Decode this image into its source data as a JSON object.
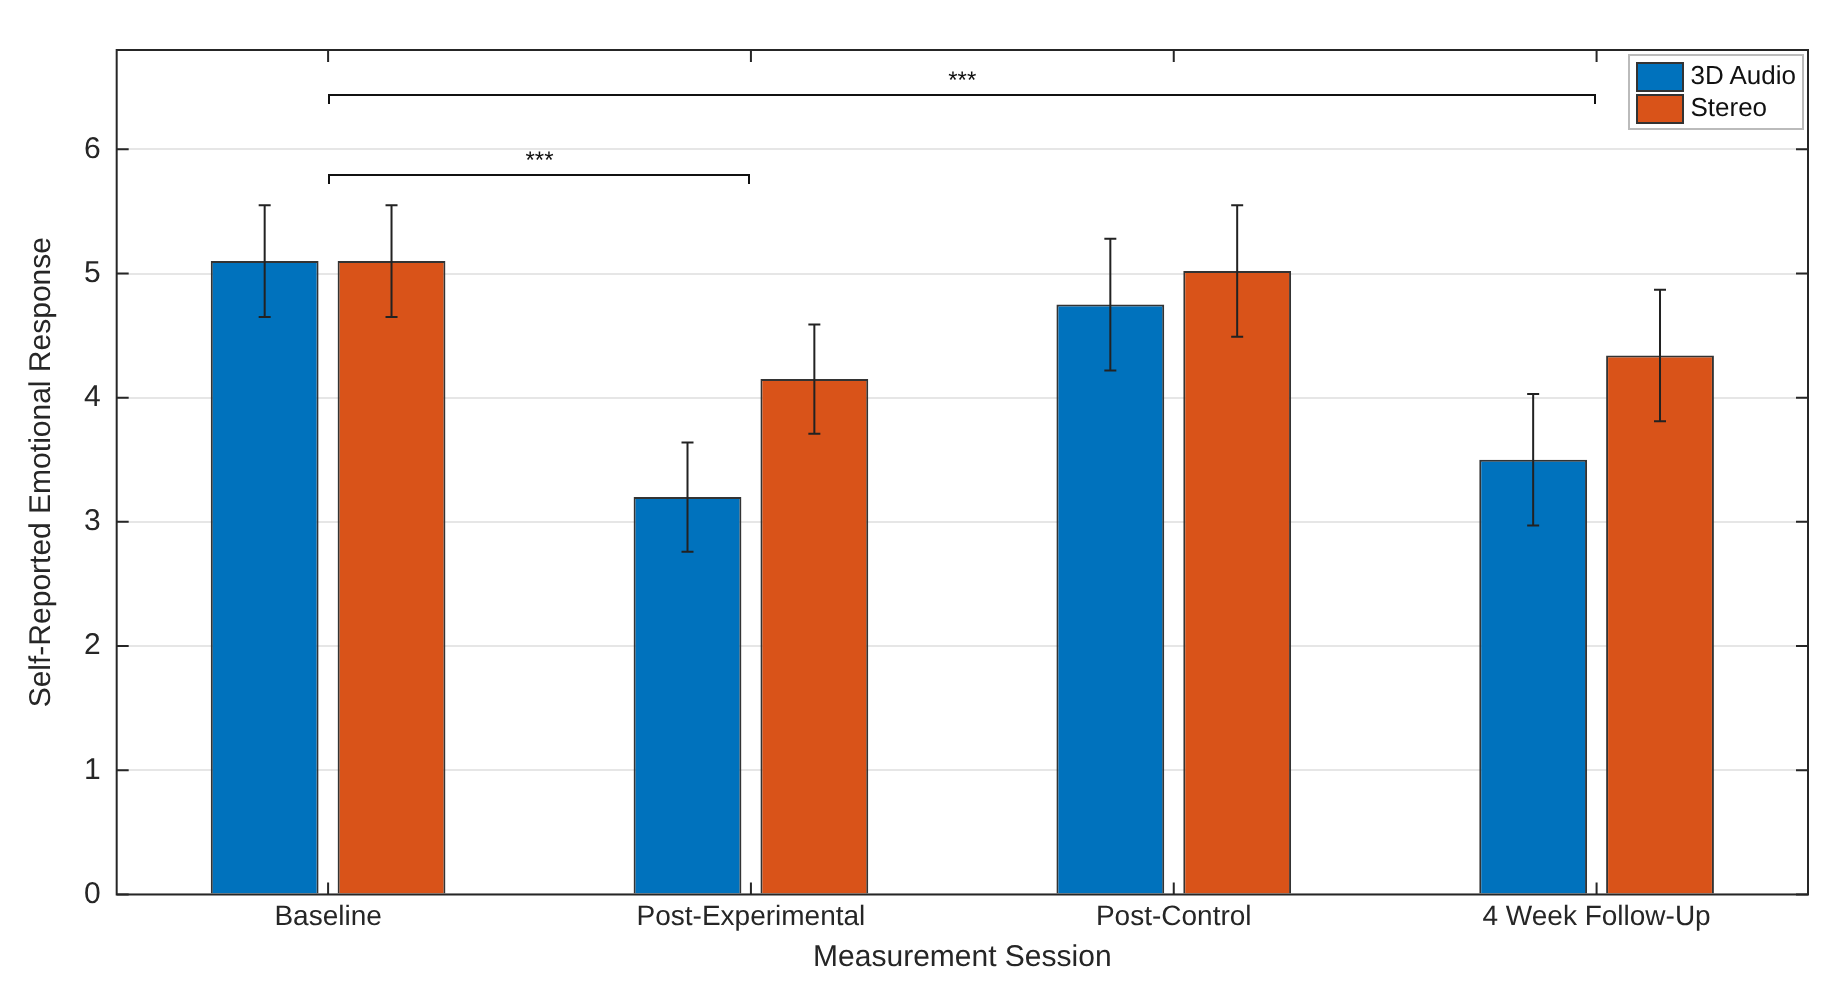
{
  "chart_data": {
    "type": "bar",
    "xlabel": "Measurement Session",
    "ylabel": "Self-Reported Emotional Response",
    "categories": [
      "Baseline",
      "Post-Experimental",
      "Post-Control",
      "4 Week Follow-Up"
    ],
    "series": [
      {
        "name": "3D Audio",
        "color": "#0072bd",
        "values": [
          5.1,
          3.2,
          4.75,
          3.5
        ],
        "errors": [
          0.45,
          0.44,
          0.53,
          0.53
        ]
      },
      {
        "name": "Stereo",
        "color": "#d95319",
        "values": [
          5.1,
          4.15,
          5.02,
          4.34
        ],
        "errors": [
          0.45,
          0.44,
          0.53,
          0.53
        ]
      }
    ],
    "ylim": [
      0,
      6.8
    ],
    "yticks": [
      0,
      1,
      2,
      3,
      4,
      5,
      6
    ],
    "grid": "y",
    "legend": "top right",
    "annotations": [
      "***",
      "***"
    ]
  }
}
